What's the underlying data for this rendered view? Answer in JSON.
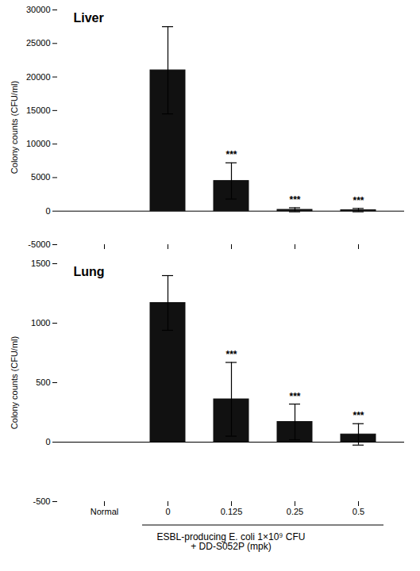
{
  "chart_data": [
    {
      "type": "bar",
      "title": "Liver",
      "ylabel": "Colony counts (CFU/ml)",
      "categories": [
        "Normal",
        "0",
        "0.125",
        "0.25",
        "0.5"
      ],
      "values": [
        0,
        21000,
        4500,
        200,
        150
      ],
      "errors": [
        0,
        6500,
        2700,
        300,
        250
      ],
      "annotations": [
        null,
        null,
        "***",
        "***",
        "***"
      ],
      "color": "#111111",
      "ylim": [
        -5000,
        30000
      ],
      "yticks": [
        -5000,
        0,
        5000,
        10000,
        15000,
        20000,
        25000,
        30000
      ],
      "grid": false,
      "tick_labels": "y"
    },
    {
      "type": "bar",
      "title": "Lung",
      "ylabel": "Colony counts (CFU/ml)",
      "xlabel": "ESBL-producing E. coli 1×10⁹ CFU\n+ DD-S052P (mpk)",
      "categories": [
        "Normal",
        "0",
        "0.125",
        "0.25",
        "0.5"
      ],
      "values": [
        0,
        1170,
        360,
        170,
        65
      ],
      "errors": [
        0,
        230,
        310,
        150,
        90
      ],
      "annotations": [
        null,
        null,
        "***",
        "***",
        "***"
      ],
      "color": "#111111",
      "ylim": [
        -500,
        1500
      ],
      "yticks": [
        -500,
        0,
        500,
        1000,
        1500
      ],
      "grid": false
    }
  ]
}
